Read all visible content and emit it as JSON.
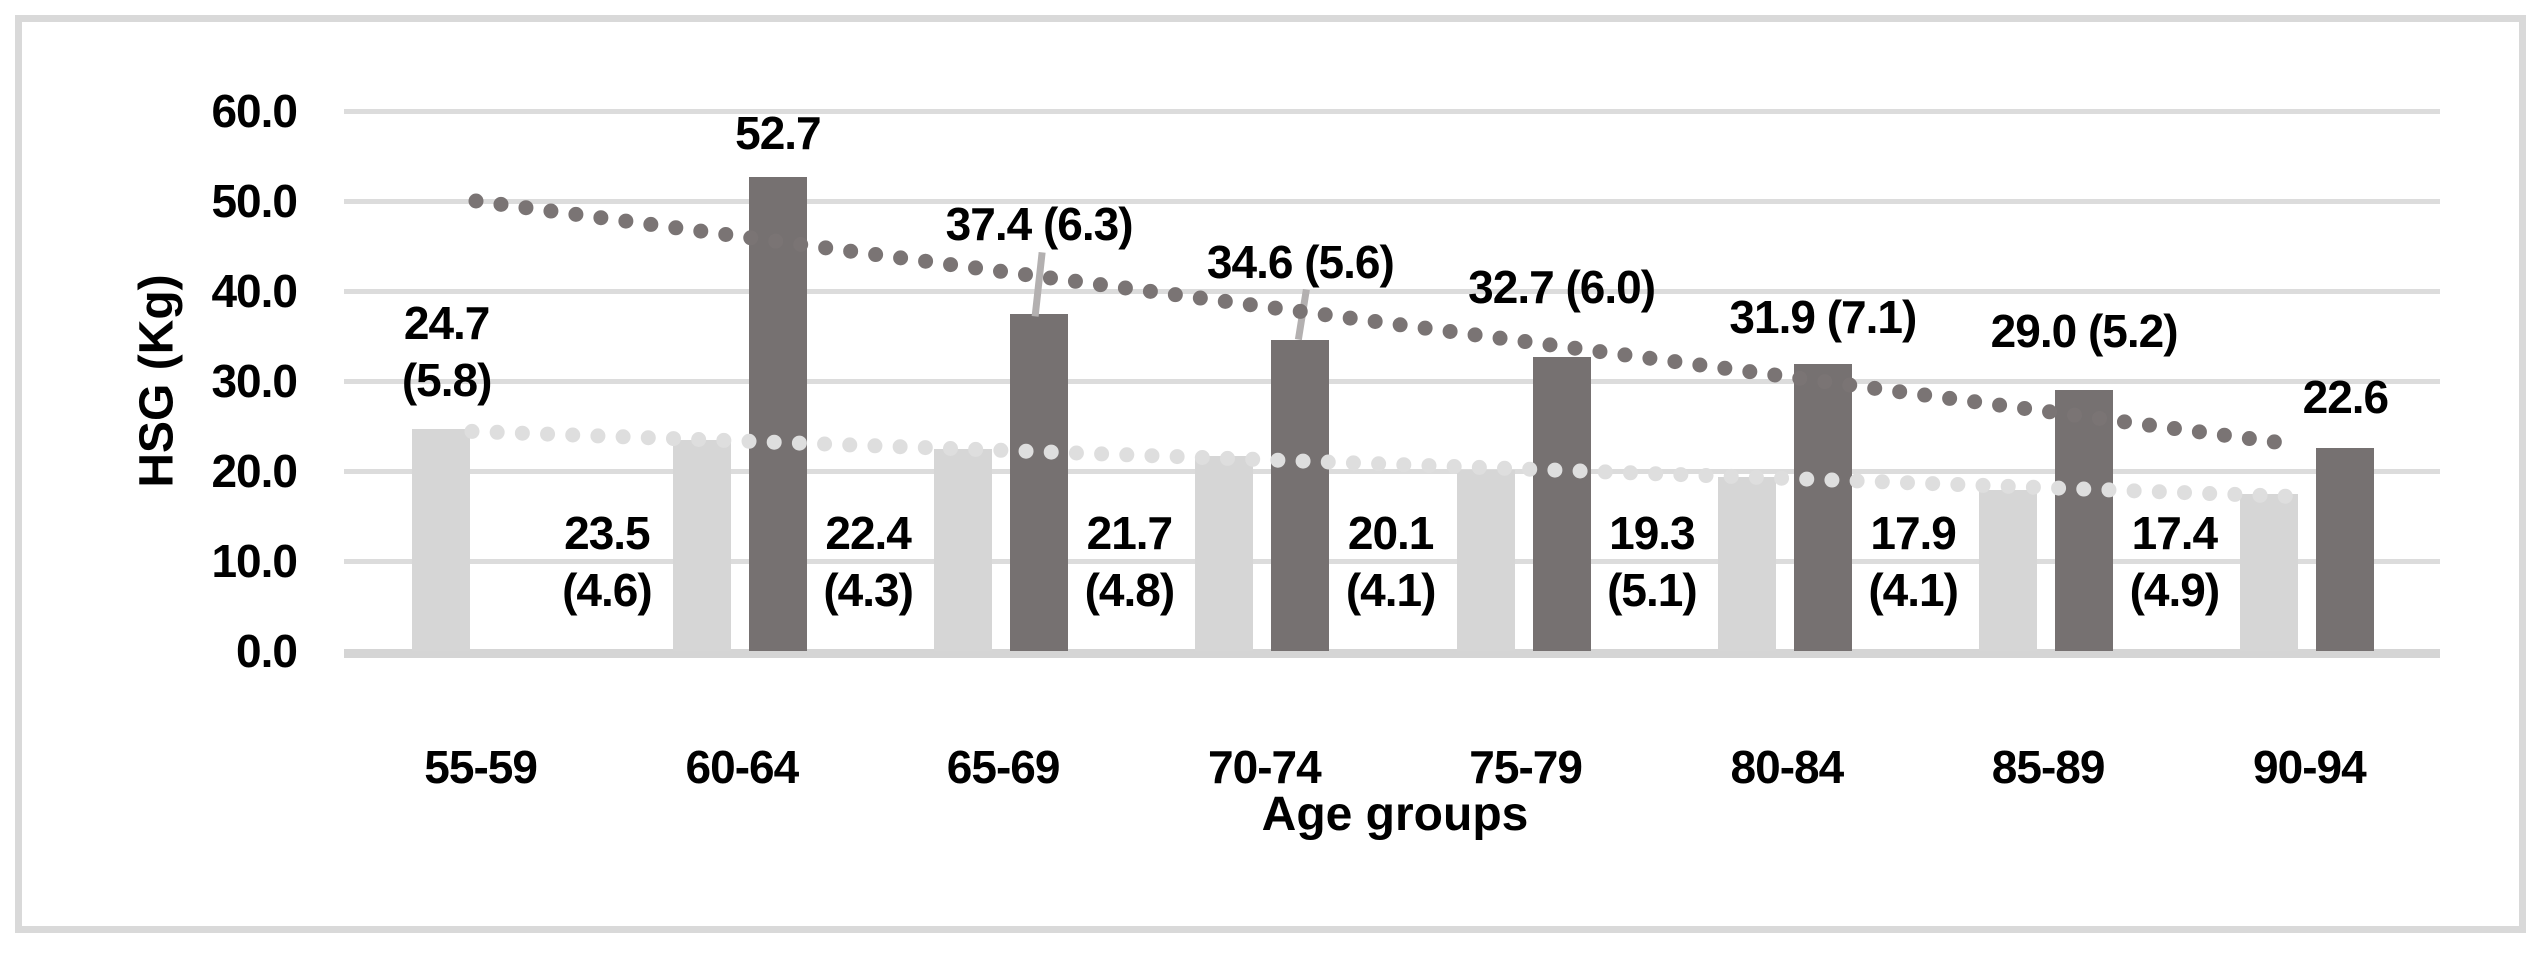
{
  "chart_data": {
    "type": "bar",
    "title": "",
    "xlabel": "Age groups",
    "ylabel": "HSG (Kg)",
    "ylim": [
      0,
      60
    ],
    "grid": true,
    "legend_position": "none",
    "yticks": [
      {
        "value": 60,
        "label": "60.0"
      },
      {
        "value": 50,
        "label": "50.0"
      },
      {
        "value": 40,
        "label": "40.0"
      },
      {
        "value": 30,
        "label": "30.0"
      },
      {
        "value": 20,
        "label": "20.0"
      },
      {
        "value": 10,
        "label": "10.0"
      },
      {
        "value": 0,
        "label": "0.0"
      }
    ],
    "categories": [
      "55-59",
      "60-64",
      "65-69",
      "70-74",
      "75-79",
      "80-84",
      "85-89",
      "90-94"
    ],
    "series": [
      {
        "name": "light-gray-series",
        "color": "#d6d6d6",
        "values": [
          24.7,
          23.5,
          22.4,
          21.7,
          20.1,
          19.3,
          17.9,
          17.4
        ],
        "sd": [
          5.8,
          4.6,
          4.3,
          4.8,
          4.1,
          5.1,
          4.1,
          4.9
        ],
        "value_labels": [
          "24.7",
          "23.5",
          "22.4",
          "21.7",
          "20.1",
          "19.3",
          "17.9",
          "17.4"
        ],
        "sd_labels": [
          "(5.8)",
          "(4.6)",
          "(4.3)",
          "(4.8)",
          "(4.1)",
          "(5.1)",
          "(4.1)",
          "(4.9)"
        ]
      },
      {
        "name": "dark-gray-series",
        "color": "#767171",
        "values": [
          null,
          52.7,
          37.4,
          34.6,
          32.7,
          31.9,
          29.0,
          22.6
        ],
        "sd": [
          null,
          null,
          6.3,
          5.6,
          6.0,
          7.1,
          5.2,
          null
        ],
        "labels": [
          "",
          "52.7",
          "37.4 (6.3)",
          "34.6 (5.6)",
          "32.7 (6.0)",
          "31.9 (7.1)",
          "29.0 (5.2)",
          "22.6"
        ]
      }
    ],
    "trendlines": [
      {
        "series": "dark-gray-series",
        "style": "dotted",
        "color": "#7a7474",
        "start_value": 50.0,
        "end_value": 23.0
      },
      {
        "series": "light-gray-series",
        "style": "dotted",
        "color": "#dedede",
        "start_value": 24.4,
        "end_value": 17.1
      }
    ]
  },
  "frame": {
    "border_color": "#d9d9d9"
  }
}
